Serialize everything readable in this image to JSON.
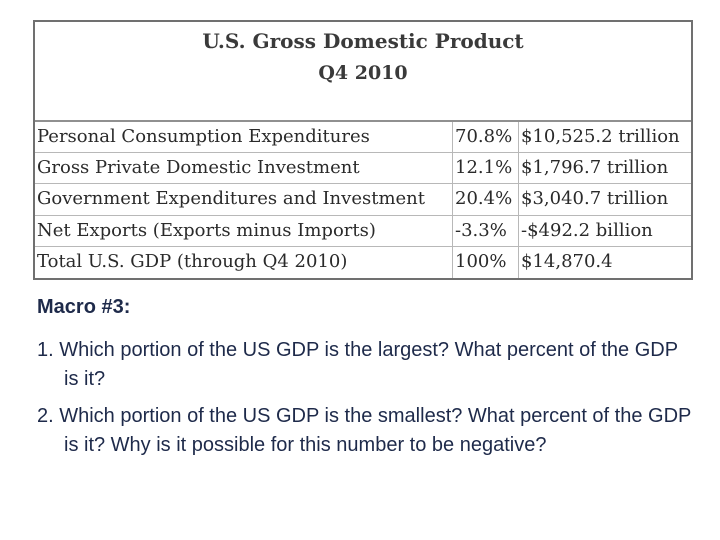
{
  "table": {
    "title": "U.S. Gross Domestic Product",
    "subtitle": "Q4 2010",
    "rows": [
      {
        "label": "Personal Consumption Expenditures",
        "percent": "70.8%",
        "value": "$10,525.2 trillion"
      },
      {
        "label": "Gross Private Domestic Investment",
        "percent": "12.1%",
        "value": "$1,796.7 trillion"
      },
      {
        "label": "Government Expenditures and Investment",
        "percent": "20.4%",
        "value": "$3,040.7 trillion"
      },
      {
        "label": "Net Exports (Exports minus Imports)",
        "percent": "-3.3%",
        "value": "-$492.2 billion"
      },
      {
        "label": "Total U.S. GDP (through Q4 2010)",
        "percent": "100%",
        "value": "$14,870.4"
      }
    ]
  },
  "macro": {
    "title": "Macro #3:",
    "questions": [
      "1. Which portion of the US GDP is the largest? What percent of the GDP is it?",
      "2. Which portion of the US GDP is the smallest? What percent of the GDP is it? Why is it possible for this number to be negative?"
    ]
  }
}
